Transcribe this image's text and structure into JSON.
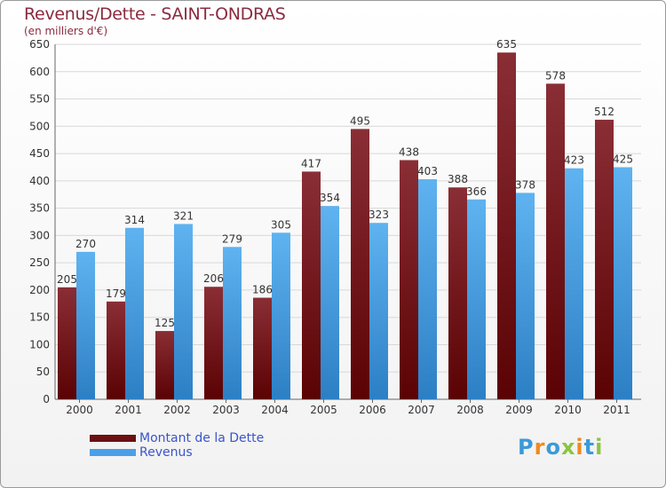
{
  "header": {
    "title": "Revenus/Dette - SAINT-ONDRAS",
    "subtitle": "(en milliers d'€)"
  },
  "legend": {
    "items": [
      {
        "label": "Montant de la Dette",
        "color": "#6b1013"
      },
      {
        "label": "Revenus",
        "color": "#4aa0e6"
      }
    ]
  },
  "logo": {
    "text": "Proxiti",
    "letters": [
      {
        "ch": "P",
        "color": "#3a9ad9"
      },
      {
        "ch": "r",
        "color": "#f08a1c"
      },
      {
        "ch": "o",
        "color": "#3a9ad9"
      },
      {
        "ch": "x",
        "color": "#8bc53f"
      },
      {
        "ch": "i",
        "color": "#f08a1c"
      },
      {
        "ch": "t",
        "color": "#3a9ad9"
      },
      {
        "ch": "i",
        "color": "#8bc53f"
      }
    ]
  },
  "chart_data": {
    "type": "bar",
    "title": "Revenus/Dette - SAINT-ONDRAS",
    "subtitle": "(en milliers d'€)",
    "xlabel": "",
    "ylabel": "",
    "ylim": [
      0,
      650
    ],
    "yticks": [
      0,
      50,
      100,
      150,
      200,
      250,
      300,
      350,
      400,
      450,
      500,
      550,
      600,
      650
    ],
    "grid": true,
    "legend_position": "bottom-left",
    "categories": [
      "2000",
      "2001",
      "2002",
      "2003",
      "2004",
      "2005",
      "2006",
      "2007",
      "2008",
      "2009",
      "2010",
      "2011"
    ],
    "series": [
      {
        "name": "Montant de la Dette",
        "color": "#6b1013",
        "values": [
          205,
          179,
          125,
          206,
          186,
          417,
          495,
          438,
          388,
          635,
          578,
          512
        ]
      },
      {
        "name": "Revenus",
        "color": "#4aa0e6",
        "values": [
          270,
          314,
          321,
          279,
          305,
          354,
          323,
          403,
          366,
          378,
          423,
          425
        ]
      }
    ]
  }
}
